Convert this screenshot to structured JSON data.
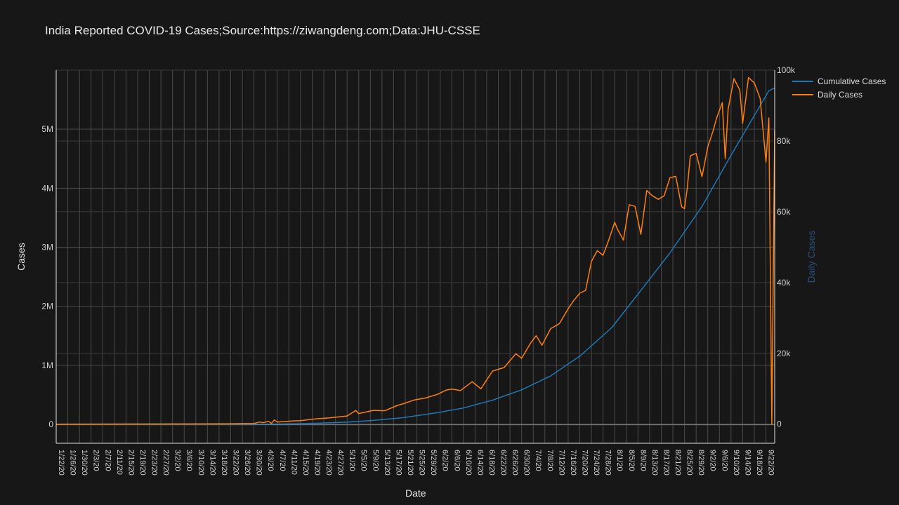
{
  "chart_data": {
    "type": "line",
    "title": "India Reported COVID-19 Cases;Source:https://ziwangdeng.com;Data:JHU-CSSE",
    "xlabel": "Date",
    "ylabel": "Cases",
    "y2label": "Daily Cases",
    "x_start": "1/22/20",
    "x_end": "9/25/20",
    "x_tick_step_days": 4,
    "ylim": [
      -320000,
      6000000
    ],
    "y_ticks": [
      0,
      1000000,
      2000000,
      3000000,
      4000000,
      5000000
    ],
    "y_tick_labels": [
      "0",
      "1M",
      "2M",
      "3M",
      "4M",
      "5M"
    ],
    "y2lim": [
      -5400,
      100000
    ],
    "y2_ticks": [
      0,
      20000,
      40000,
      60000,
      80000,
      100000
    ],
    "y2_tick_labels": [
      "0",
      "20k",
      "40k",
      "60k",
      "80k",
      "100k"
    ],
    "grid": true,
    "legend_position": "top-right",
    "series": [
      {
        "name": "Cumulative Cases",
        "axis": "y",
        "color": "#1f77b4",
        "points": [
          [
            "1/22/20",
            0
          ],
          [
            "3/1/20",
            3
          ],
          [
            "3/15/20",
            110
          ],
          [
            "3/25/20",
            650
          ],
          [
            "4/1/20",
            2000
          ],
          [
            "4/10/20",
            7600
          ],
          [
            "4/20/20",
            18500
          ],
          [
            "5/1/20",
            37000
          ],
          [
            "5/10/20",
            67000
          ],
          [
            "5/20/20",
            112000
          ],
          [
            "6/1/20",
            198000
          ],
          [
            "6/10/20",
            277000
          ],
          [
            "6/20/20",
            411000
          ],
          [
            "6/30/20",
            585000
          ],
          [
            "7/10/20",
            822000
          ],
          [
            "7/20/20",
            1155000
          ],
          [
            "7/31/20",
            1640000
          ],
          [
            "8/10/20",
            2268000
          ],
          [
            "8/20/20",
            2905000
          ],
          [
            "8/31/20",
            3690000
          ],
          [
            "9/10/20",
            4560000
          ],
          [
            "9/20/20",
            5400000
          ],
          [
            "9/23/20",
            5650000
          ],
          [
            "9/25/20",
            5700000
          ]
        ]
      },
      {
        "name": "Daily Cases",
        "axis": "y2",
        "color": "#ff7f0e",
        "points": [
          [
            "1/22/20",
            0
          ],
          [
            "3/20/20",
            100
          ],
          [
            "3/30/20",
            200
          ],
          [
            "4/1/20",
            600
          ],
          [
            "4/2/20",
            400
          ],
          [
            "4/4/20",
            800
          ],
          [
            "4/5/20",
            200
          ],
          [
            "4/6/20",
            1200
          ],
          [
            "4/7/20",
            600
          ],
          [
            "4/12/20",
            900
          ],
          [
            "4/15/20",
            1000
          ],
          [
            "4/20/20",
            1500
          ],
          [
            "4/25/20",
            1800
          ],
          [
            "5/1/20",
            2300
          ],
          [
            "5/4/20",
            3900
          ],
          [
            "5/5/20",
            3000
          ],
          [
            "5/10/20",
            3900
          ],
          [
            "5/14/20",
            3800
          ],
          [
            "5/18/20",
            5200
          ],
          [
            "5/20/20",
            5700
          ],
          [
            "5/24/20",
            6800
          ],
          [
            "5/28/20",
            7400
          ],
          [
            "6/1/20",
            8400
          ],
          [
            "6/4/20",
            9600
          ],
          [
            "6/6/20",
            9900
          ],
          [
            "6/9/20",
            9500
          ],
          [
            "6/13/20",
            12000
          ],
          [
            "6/16/20",
            10000
          ],
          [
            "6/20/20",
            15000
          ],
          [
            "6/24/20",
            16000
          ],
          [
            "6/28/20",
            19900
          ],
          [
            "6/30/20",
            18600
          ],
          [
            "7/3/20",
            22800
          ],
          [
            "7/5/20",
            25000
          ],
          [
            "7/7/20",
            22300
          ],
          [
            "7/10/20",
            27000
          ],
          [
            "7/13/20",
            28400
          ],
          [
            "7/16/20",
            32600
          ],
          [
            "7/18/20",
            35000
          ],
          [
            "7/20/20",
            37000
          ],
          [
            "7/22/20",
            37800
          ],
          [
            "7/24/20",
            46000
          ],
          [
            "7/26/20",
            49000
          ],
          [
            "7/28/20",
            47700
          ],
          [
            "7/30/20",
            52100
          ],
          [
            "8/1/20",
            57000
          ],
          [
            "8/2/20",
            55000
          ],
          [
            "8/4/20",
            52000
          ],
          [
            "8/6/20",
            62000
          ],
          [
            "8/8/20",
            61500
          ],
          [
            "8/10/20",
            53600
          ],
          [
            "8/12/20",
            66000
          ],
          [
            "8/14/20",
            64500
          ],
          [
            "8/16/20",
            63500
          ],
          [
            "8/18/20",
            64500
          ],
          [
            "8/20/20",
            69600
          ],
          [
            "8/22/20",
            70000
          ],
          [
            "8/24/20",
            61400
          ],
          [
            "8/25/20",
            60900
          ],
          [
            "8/26/20",
            67000
          ],
          [
            "8/27/20",
            75800
          ],
          [
            "8/29/20",
            76500
          ],
          [
            "8/31/20",
            69900
          ],
          [
            "9/2/20",
            78300
          ],
          [
            "9/4/20",
            83300
          ],
          [
            "9/5/20",
            86400
          ],
          [
            "9/7/20",
            90800
          ],
          [
            "9/8/20",
            75000
          ],
          [
            "9/9/20",
            89000
          ],
          [
            "9/11/20",
            97600
          ],
          [
            "9/13/20",
            94400
          ],
          [
            "9/14/20",
            85000
          ],
          [
            "9/16/20",
            97900
          ],
          [
            "9/18/20",
            96400
          ],
          [
            "9/20/20",
            92000
          ],
          [
            "9/22/20",
            74000
          ],
          [
            "9/23/20",
            86500
          ],
          [
            "9/24/20",
            0
          ],
          [
            "9/25/20",
            83000
          ]
        ]
      }
    ]
  }
}
